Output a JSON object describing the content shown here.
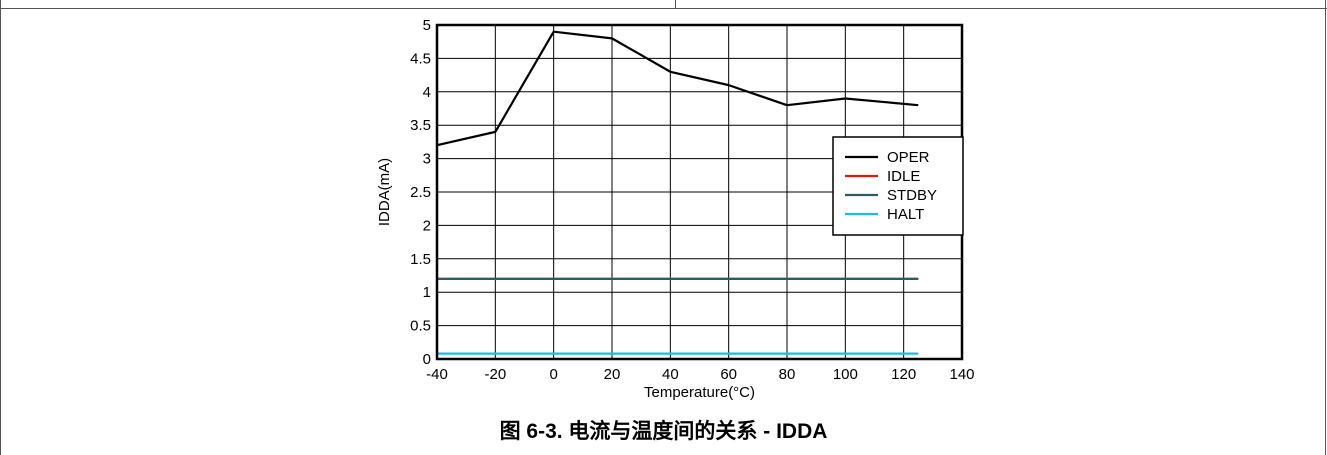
{
  "caption": "图 6-3. 电流与温度间的关系 - IDDA",
  "chart_data": {
    "type": "line",
    "title": "",
    "xlabel": "Temperature(°C)",
    "ylabel": "IDDA(mA)",
    "xlim": [
      -40,
      140
    ],
    "ylim": [
      0,
      5
    ],
    "xticks": [
      -40,
      -20,
      0,
      20,
      40,
      60,
      80,
      100,
      120,
      140
    ],
    "yticks": [
      0,
      0.5,
      1,
      1.5,
      2,
      2.5,
      3,
      3.5,
      4,
      4.5,
      5
    ],
    "grid": true,
    "legend_position": "right",
    "series": [
      {
        "name": "OPER",
        "color": "#000000",
        "x": [
          -40,
          -20,
          0,
          20,
          40,
          60,
          80,
          100,
          125
        ],
        "y": [
          3.2,
          3.4,
          4.9,
          4.8,
          4.3,
          4.1,
          3.8,
          3.9,
          3.8
        ]
      },
      {
        "name": "IDLE",
        "color": "#e8140f",
        "x": [
          -40,
          -20,
          0,
          20,
          40,
          60,
          80,
          100,
          125
        ],
        "y": [
          1.2,
          1.2,
          1.2,
          1.2,
          1.2,
          1.2,
          1.2,
          1.2,
          1.2
        ]
      },
      {
        "name": "STDBY",
        "color": "#2f5a68",
        "x": [
          -40,
          -20,
          0,
          20,
          40,
          60,
          80,
          100,
          125
        ],
        "y": [
          1.2,
          1.2,
          1.2,
          1.2,
          1.2,
          1.2,
          1.2,
          1.2,
          1.2
        ]
      },
      {
        "name": "HALT",
        "color": "#18bfe0",
        "x": [
          -40,
          -20,
          0,
          20,
          40,
          60,
          80,
          100,
          125
        ],
        "y": [
          0.08,
          0.08,
          0.08,
          0.08,
          0.08,
          0.08,
          0.08,
          0.08,
          0.08
        ]
      }
    ]
  }
}
